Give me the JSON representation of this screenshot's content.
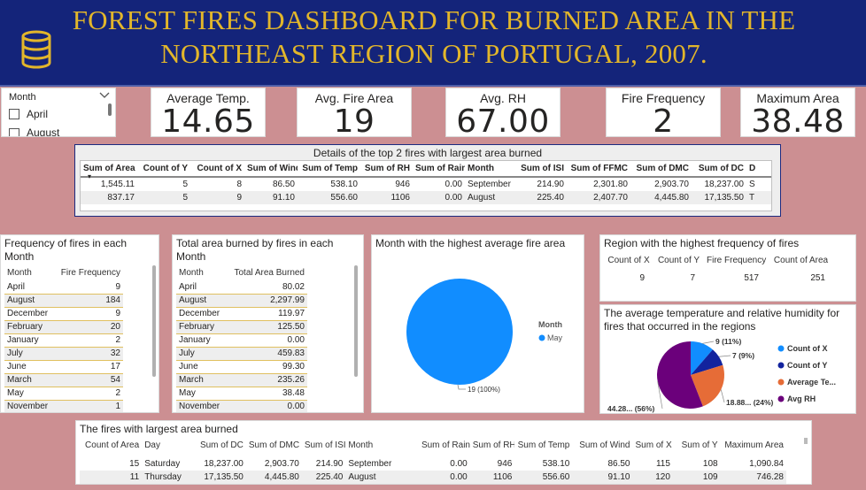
{
  "header": {
    "title": "FOREST FIRES DASHBOARD FOR BURNED AREA IN THE NORTHEAST REGION OF PORTUGAL, 2007.",
    "title_line1": "FOREST FIRES DASHBOARD FOR BURNED AREA IN THE",
    "title_line2": "NORTHEAST REGION OF PORTUGAL, 2007.",
    "icon": "database-icon"
  },
  "slicer": {
    "label": "Month",
    "options": [
      "April",
      "August"
    ]
  },
  "kpis": [
    {
      "label": "Average Temp.",
      "value": "14.65"
    },
    {
      "label": "Avg. Fire Area",
      "value": "19"
    },
    {
      "label": "Avg. RH",
      "value": "67.00"
    },
    {
      "label": "Fire Frequency",
      "value": "2"
    },
    {
      "label": "Maximum Area",
      "value": "38.48"
    }
  ],
  "top_fires": {
    "title": "Details of the top 2 fires with largest area burned",
    "columns": [
      "Sum of Area",
      "Count of Y",
      "Count of X",
      "Sum of Wind",
      "Sum of Temp",
      "Sum of RH",
      "Sum of Rain",
      "Month",
      "Sum of ISI",
      "Sum of FFMC",
      "Sum of DMC",
      "Sum of DC",
      "D"
    ],
    "rows": [
      [
        "1,545.11",
        "5",
        "8",
        "86.50",
        "538.10",
        "946",
        "0.00",
        "September",
        "214.90",
        "2,301.80",
        "2,903.70",
        "18,237.00",
        "S"
      ],
      [
        "837.17",
        "5",
        "9",
        "91.10",
        "556.60",
        "1106",
        "0.00",
        "August",
        "225.40",
        "2,407.70",
        "4,445.80",
        "17,135.50",
        "T"
      ]
    ]
  },
  "freq_table": {
    "title": "Frequency of fires in each Month",
    "columns": [
      "Month",
      "Fire Frequency"
    ],
    "rows": [
      [
        "April",
        "9"
      ],
      [
        "August",
        "184"
      ],
      [
        "December",
        "9"
      ],
      [
        "February",
        "20"
      ],
      [
        "January",
        "2"
      ],
      [
        "July",
        "32"
      ],
      [
        "June",
        "17"
      ],
      [
        "March",
        "54"
      ],
      [
        "May",
        "2"
      ],
      [
        "November",
        "1"
      ]
    ]
  },
  "area_table": {
    "title": "Total area burned by fires in each Month",
    "columns": [
      "Month",
      "Total Area Burned"
    ],
    "rows": [
      [
        "April",
        "80.02"
      ],
      [
        "August",
        "2,297.99"
      ],
      [
        "December",
        "119.97"
      ],
      [
        "February",
        "125.50"
      ],
      [
        "January",
        "0.00"
      ],
      [
        "July",
        "459.83"
      ],
      [
        "June",
        "99.30"
      ],
      [
        "March",
        "235.26"
      ],
      [
        "May",
        "38.48"
      ],
      [
        "November",
        "0.00"
      ]
    ]
  },
  "pie_month": {
    "title": "Month with the highest average fire area",
    "legend_title": "Month",
    "label": "19 (100%)"
  },
  "region": {
    "title": "Region with the highest frequency of fires",
    "columns": [
      "Count of X",
      "Count of Y",
      "Fire Frequency",
      "Count of Area"
    ],
    "row": [
      "9",
      "7",
      "517",
      "251"
    ]
  },
  "pie_temp": {
    "title": "The average temperature and relative humidity for fires that occurred in the regions",
    "labels": [
      "9 (11%)",
      "7 (9%)",
      "18.88... (24%)",
      "44.28... (56%)"
    ],
    "legend": [
      "Count of X",
      "Count of Y",
      "Average Te...",
      "Avg RH"
    ]
  },
  "largest_table": {
    "title": "The fires with largest area burned",
    "columns": [
      "Count of Area",
      "Day",
      "Sum of DC",
      "Sum of DMC",
      "Sum of ISI",
      "Month",
      "Sum of Rain",
      "Sum of RH",
      "Sum of Temp",
      "Sum of Wind",
      "Sum of X",
      "Sum of Y",
      "Maximum Area"
    ],
    "rows": [
      [
        "15",
        "Saturday",
        "18,237.00",
        "2,903.70",
        "214.90",
        "September",
        "0.00",
        "946",
        "538.10",
        "86.50",
        "115",
        "108",
        "1,090.84"
      ],
      [
        "11",
        "Thursday",
        "17,135.50",
        "4,445.80",
        "225.40",
        "August",
        "0.00",
        "1106",
        "556.60",
        "91.10",
        "120",
        "109",
        "746.28"
      ]
    ]
  },
  "chart_data": [
    {
      "type": "pie",
      "title": "Month with the highest average fire area",
      "categories": [
        "May"
      ],
      "values": [
        19
      ],
      "colors": [
        "#118dff"
      ]
    },
    {
      "type": "pie",
      "title": "The average temperature and relative humidity for fires that occurred in the regions",
      "categories": [
        "Count of X",
        "Count of Y",
        "Average Te...",
        "Avg RH"
      ],
      "values": [
        9,
        7,
        18.88,
        44.28
      ],
      "colors": [
        "#118dff",
        "#12239e",
        "#e66c37",
        "#6b007b"
      ]
    }
  ]
}
